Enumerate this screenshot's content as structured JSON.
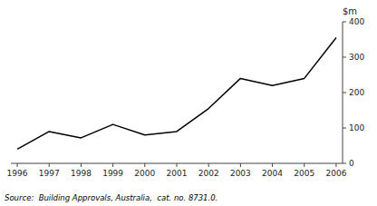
{
  "chart_data": {
    "type": "line",
    "x": [
      1996,
      1997,
      1998,
      1999,
      2000,
      2001,
      2002,
      2003,
      2004,
      2005,
      2006
    ],
    "values": [
      40,
      90,
      72,
      110,
      80,
      90,
      155,
      240,
      220,
      240,
      355
    ],
    "color": "#000000",
    "xlim": [
      1995.8,
      2006.2
    ],
    "xticks": [
      1996,
      1997,
      1998,
      1999,
      2000,
      2001,
      2002,
      2003,
      2004,
      2005,
      2006
    ],
    "ylim": [
      0,
      400
    ],
    "yticks": [
      0,
      100,
      200,
      300,
      400
    ],
    "ylabel": "$m",
    "annotations": [
      "Source:  Building Approvals, Australia,  cat. no. 8731.0."
    ],
    "grid": false
  }
}
